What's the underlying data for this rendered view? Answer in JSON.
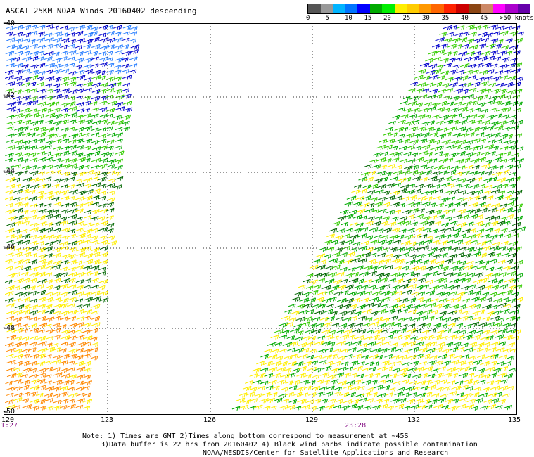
{
  "title": "ASCAT 25KM NOAA Winds 20160402 descending",
  "legend": {
    "labels": [
      "0",
      "5",
      "10",
      "15",
      "20",
      "25",
      "30",
      "35",
      "40",
      "45",
      ">50 knots"
    ],
    "colors": [
      "#555555",
      "#999999",
      "#00b4ff",
      "#0074ff",
      "#0000ff",
      "#00aa00",
      "#00ee00",
      "#ffee00",
      "#ffcc00",
      "#ff9900",
      "#ff6600",
      "#ff2200",
      "#cc0000",
      "#8b4513",
      "#cc8866",
      "#ff00ff",
      "#aa00cc",
      "#6600aa"
    ]
  },
  "map": {
    "lon_labels": [
      "120",
      "123",
      "126",
      "129",
      "132",
      "135"
    ],
    "lat_labels": [
      "-40",
      "-42",
      "-44",
      "-46",
      "-48",
      "-50"
    ],
    "time_labels": [
      "1:27",
      "23:28"
    ],
    "barb_colors": {
      "calm": "#0000cc",
      "light": "#2a7fff",
      "moderate": "#00aa00",
      "fresh": "#33cc00",
      "strong": "#ffee00",
      "gale": "#ff8800",
      "dark": "#006600"
    }
  },
  "notes": {
    "line1": "Note: 1) Times are GMT 2)Times along bottom correspond to measurement at ~45S",
    "line2": "3)Data buffer is 22 hrs from 20160402 4) Black wind barbs indicate possible contamination",
    "line3": "NOAA/NESDIS/Center for Satellite Applications and Research"
  }
}
